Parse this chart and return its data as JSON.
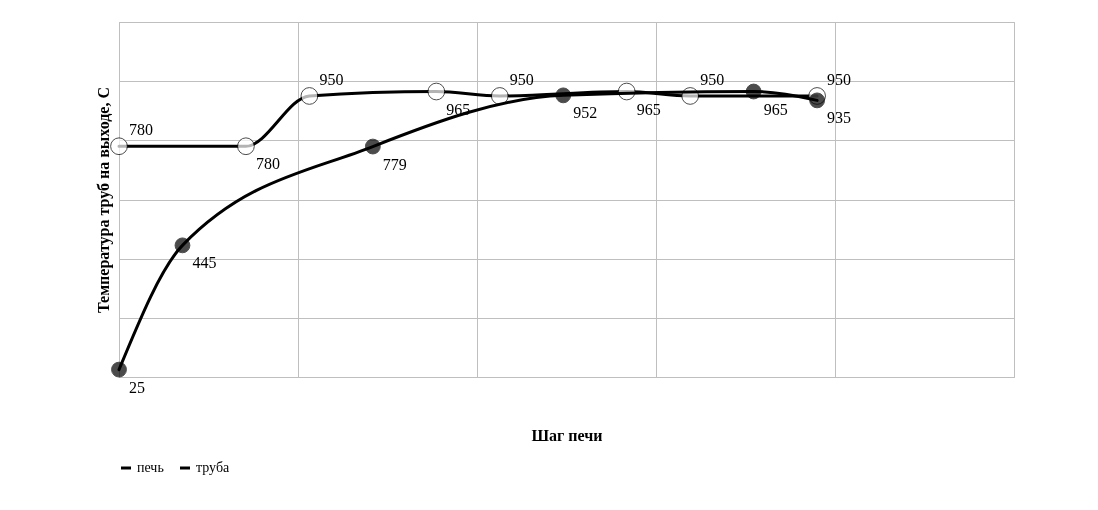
{
  "chart_data": {
    "type": "line",
    "xlabel": "Шаг печи",
    "ylabel": "Температура труб на выходе, С",
    "categories": [
      null,
      null,
      null,
      null,
      null,
      null,
      null,
      null,
      null,
      null,
      null,
      null
    ],
    "ylim": [
      0,
      1200
    ],
    "yticks": [
      0,
      200,
      400,
      600,
      800,
      1000,
      1200
    ],
    "tick_labels": false,
    "grid": true,
    "legend": "bottom",
    "marker": "circle",
    "data_labels": true,
    "series": [
      {
        "name": "печь",
        "color": "#000000",
        "values": [
          780,
          null,
          780,
          950,
          null,
          965,
          950,
          null,
          965,
          950,
          null,
          950
        ]
      },
      {
        "name": "труба",
        "color": "#000000",
        "values": [
          25,
          445,
          null,
          null,
          779,
          null,
          null,
          952,
          null,
          null,
          965,
          935
        ]
      }
    ]
  }
}
